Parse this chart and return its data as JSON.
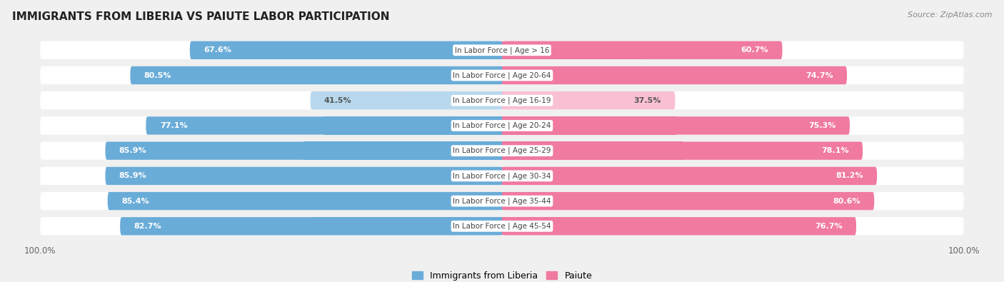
{
  "title": "IMMIGRANTS FROM LIBERIA VS PAIUTE LABOR PARTICIPATION",
  "source": "Source: ZipAtlas.com",
  "categories": [
    "In Labor Force | Age > 16",
    "In Labor Force | Age 20-64",
    "In Labor Force | Age 16-19",
    "In Labor Force | Age 20-24",
    "In Labor Force | Age 25-29",
    "In Labor Force | Age 30-34",
    "In Labor Force | Age 35-44",
    "In Labor Force | Age 45-54"
  ],
  "liberia_values": [
    67.6,
    80.5,
    41.5,
    77.1,
    85.9,
    85.9,
    85.4,
    82.7
  ],
  "paiute_values": [
    60.7,
    74.7,
    37.5,
    75.3,
    78.1,
    81.2,
    80.6,
    76.7
  ],
  "liberia_colors": [
    "#6aacd8",
    "#6aacd8",
    "#b8d8ed",
    "#6aacd8",
    "#6aacd8",
    "#6aacd8",
    "#6aacd8",
    "#6aacd8"
  ],
  "paiute_colors": [
    "#f07aa0",
    "#f07aa0",
    "#f9c0d4",
    "#f07aa0",
    "#f07aa0",
    "#f07aa0",
    "#f07aa0",
    "#f07aa0"
  ],
  "liberia_label_colors": [
    "white",
    "white",
    "#555555",
    "white",
    "white",
    "white",
    "white",
    "white"
  ],
  "paiute_label_colors": [
    "white",
    "white",
    "#555555",
    "white",
    "white",
    "white",
    "white",
    "white"
  ],
  "liberia_color": "#6aacd8",
  "paiute_color": "#f07aa0",
  "bg_color": "#f0f0f0",
  "row_bg_color": "#e8e8e8",
  "row_white_color": "#ffffff",
  "max_val": 100.0,
  "legend_liberia": "Immigrants from Liberia",
  "legend_paiute": "Paiute"
}
